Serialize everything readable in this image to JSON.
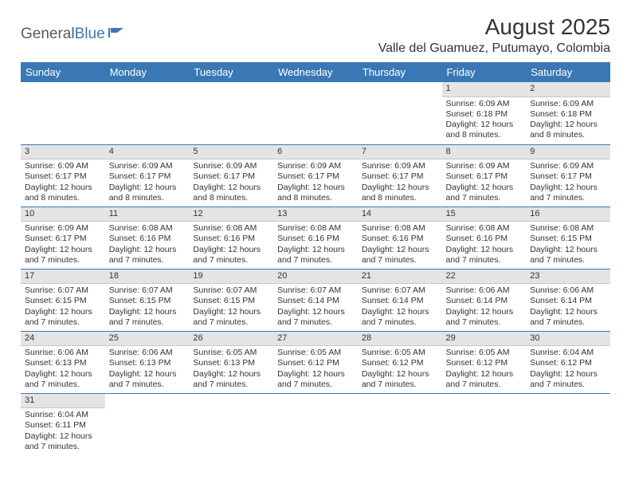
{
  "logo": {
    "part1": "General",
    "part2": "Blue"
  },
  "title": "August 2025",
  "location": "Valle del Guamuez, Putumayo, Colombia",
  "colors": {
    "header_bg": "#3a78b5",
    "header_text": "#ffffff",
    "daynum_bg": "#e4e4e4",
    "cell_border": "#3a78b5",
    "text": "#333333",
    "logo_gray": "#555a5f",
    "logo_blue": "#3a78b5"
  },
  "weekdays": [
    "Sunday",
    "Monday",
    "Tuesday",
    "Wednesday",
    "Thursday",
    "Friday",
    "Saturday"
  ],
  "weeks": [
    [
      {
        "empty": true
      },
      {
        "empty": true
      },
      {
        "empty": true
      },
      {
        "empty": true
      },
      {
        "empty": true
      },
      {
        "num": "1",
        "sunrise": "Sunrise: 6:09 AM",
        "sunset": "Sunset: 6:18 PM",
        "daylight1": "Daylight: 12 hours",
        "daylight2": "and 8 minutes."
      },
      {
        "num": "2",
        "sunrise": "Sunrise: 6:09 AM",
        "sunset": "Sunset: 6:18 PM",
        "daylight1": "Daylight: 12 hours",
        "daylight2": "and 8 minutes."
      }
    ],
    [
      {
        "num": "3",
        "sunrise": "Sunrise: 6:09 AM",
        "sunset": "Sunset: 6:17 PM",
        "daylight1": "Daylight: 12 hours",
        "daylight2": "and 8 minutes."
      },
      {
        "num": "4",
        "sunrise": "Sunrise: 6:09 AM",
        "sunset": "Sunset: 6:17 PM",
        "daylight1": "Daylight: 12 hours",
        "daylight2": "and 8 minutes."
      },
      {
        "num": "5",
        "sunrise": "Sunrise: 6:09 AM",
        "sunset": "Sunset: 6:17 PM",
        "daylight1": "Daylight: 12 hours",
        "daylight2": "and 8 minutes."
      },
      {
        "num": "6",
        "sunrise": "Sunrise: 6:09 AM",
        "sunset": "Sunset: 6:17 PM",
        "daylight1": "Daylight: 12 hours",
        "daylight2": "and 8 minutes."
      },
      {
        "num": "7",
        "sunrise": "Sunrise: 6:09 AM",
        "sunset": "Sunset: 6:17 PM",
        "daylight1": "Daylight: 12 hours",
        "daylight2": "and 8 minutes."
      },
      {
        "num": "8",
        "sunrise": "Sunrise: 6:09 AM",
        "sunset": "Sunset: 6:17 PM",
        "daylight1": "Daylight: 12 hours",
        "daylight2": "and 7 minutes."
      },
      {
        "num": "9",
        "sunrise": "Sunrise: 6:09 AM",
        "sunset": "Sunset: 6:17 PM",
        "daylight1": "Daylight: 12 hours",
        "daylight2": "and 7 minutes."
      }
    ],
    [
      {
        "num": "10",
        "sunrise": "Sunrise: 6:09 AM",
        "sunset": "Sunset: 6:17 PM",
        "daylight1": "Daylight: 12 hours",
        "daylight2": "and 7 minutes."
      },
      {
        "num": "11",
        "sunrise": "Sunrise: 6:08 AM",
        "sunset": "Sunset: 6:16 PM",
        "daylight1": "Daylight: 12 hours",
        "daylight2": "and 7 minutes."
      },
      {
        "num": "12",
        "sunrise": "Sunrise: 6:08 AM",
        "sunset": "Sunset: 6:16 PM",
        "daylight1": "Daylight: 12 hours",
        "daylight2": "and 7 minutes."
      },
      {
        "num": "13",
        "sunrise": "Sunrise: 6:08 AM",
        "sunset": "Sunset: 6:16 PM",
        "daylight1": "Daylight: 12 hours",
        "daylight2": "and 7 minutes."
      },
      {
        "num": "14",
        "sunrise": "Sunrise: 6:08 AM",
        "sunset": "Sunset: 6:16 PM",
        "daylight1": "Daylight: 12 hours",
        "daylight2": "and 7 minutes."
      },
      {
        "num": "15",
        "sunrise": "Sunrise: 6:08 AM",
        "sunset": "Sunset: 6:16 PM",
        "daylight1": "Daylight: 12 hours",
        "daylight2": "and 7 minutes."
      },
      {
        "num": "16",
        "sunrise": "Sunrise: 6:08 AM",
        "sunset": "Sunset: 6:15 PM",
        "daylight1": "Daylight: 12 hours",
        "daylight2": "and 7 minutes."
      }
    ],
    [
      {
        "num": "17",
        "sunrise": "Sunrise: 6:07 AM",
        "sunset": "Sunset: 6:15 PM",
        "daylight1": "Daylight: 12 hours",
        "daylight2": "and 7 minutes."
      },
      {
        "num": "18",
        "sunrise": "Sunrise: 6:07 AM",
        "sunset": "Sunset: 6:15 PM",
        "daylight1": "Daylight: 12 hours",
        "daylight2": "and 7 minutes."
      },
      {
        "num": "19",
        "sunrise": "Sunrise: 6:07 AM",
        "sunset": "Sunset: 6:15 PM",
        "daylight1": "Daylight: 12 hours",
        "daylight2": "and 7 minutes."
      },
      {
        "num": "20",
        "sunrise": "Sunrise: 6:07 AM",
        "sunset": "Sunset: 6:14 PM",
        "daylight1": "Daylight: 12 hours",
        "daylight2": "and 7 minutes."
      },
      {
        "num": "21",
        "sunrise": "Sunrise: 6:07 AM",
        "sunset": "Sunset: 6:14 PM",
        "daylight1": "Daylight: 12 hours",
        "daylight2": "and 7 minutes."
      },
      {
        "num": "22",
        "sunrise": "Sunrise: 6:06 AM",
        "sunset": "Sunset: 6:14 PM",
        "daylight1": "Daylight: 12 hours",
        "daylight2": "and 7 minutes."
      },
      {
        "num": "23",
        "sunrise": "Sunrise: 6:06 AM",
        "sunset": "Sunset: 6:14 PM",
        "daylight1": "Daylight: 12 hours",
        "daylight2": "and 7 minutes."
      }
    ],
    [
      {
        "num": "24",
        "sunrise": "Sunrise: 6:06 AM",
        "sunset": "Sunset: 6:13 PM",
        "daylight1": "Daylight: 12 hours",
        "daylight2": "and 7 minutes."
      },
      {
        "num": "25",
        "sunrise": "Sunrise: 6:06 AM",
        "sunset": "Sunset: 6:13 PM",
        "daylight1": "Daylight: 12 hours",
        "daylight2": "and 7 minutes."
      },
      {
        "num": "26",
        "sunrise": "Sunrise: 6:05 AM",
        "sunset": "Sunset: 6:13 PM",
        "daylight1": "Daylight: 12 hours",
        "daylight2": "and 7 minutes."
      },
      {
        "num": "27",
        "sunrise": "Sunrise: 6:05 AM",
        "sunset": "Sunset: 6:12 PM",
        "daylight1": "Daylight: 12 hours",
        "daylight2": "and 7 minutes."
      },
      {
        "num": "28",
        "sunrise": "Sunrise: 6:05 AM",
        "sunset": "Sunset: 6:12 PM",
        "daylight1": "Daylight: 12 hours",
        "daylight2": "and 7 minutes."
      },
      {
        "num": "29",
        "sunrise": "Sunrise: 6:05 AM",
        "sunset": "Sunset: 6:12 PM",
        "daylight1": "Daylight: 12 hours",
        "daylight2": "and 7 minutes."
      },
      {
        "num": "30",
        "sunrise": "Sunrise: 6:04 AM",
        "sunset": "Sunset: 6:12 PM",
        "daylight1": "Daylight: 12 hours",
        "daylight2": "and 7 minutes."
      }
    ],
    [
      {
        "num": "31",
        "sunrise": "Sunrise: 6:04 AM",
        "sunset": "Sunset: 6:11 PM",
        "daylight1": "Daylight: 12 hours",
        "daylight2": "and 7 minutes."
      },
      {
        "empty": true
      },
      {
        "empty": true
      },
      {
        "empty": true
      },
      {
        "empty": true
      },
      {
        "empty": true
      },
      {
        "empty": true
      }
    ]
  ]
}
